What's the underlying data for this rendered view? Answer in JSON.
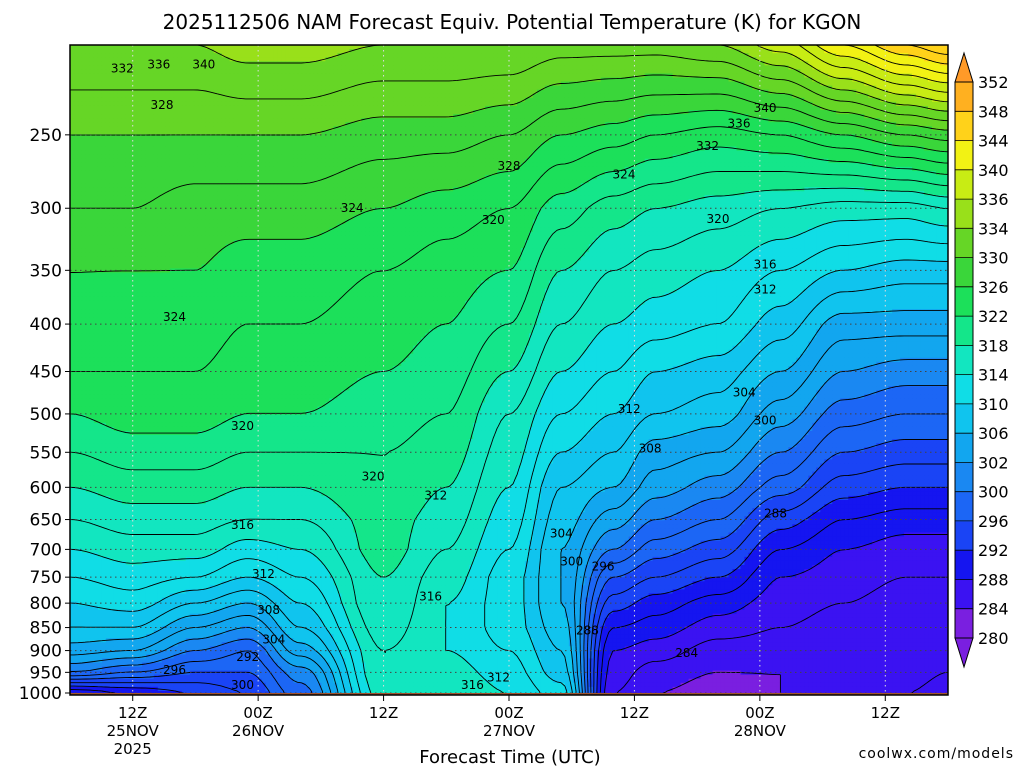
{
  "chart_data": {
    "type": "heatmap",
    "title": "2025112506 NAM Forecast Equiv. Potential Temperature (K) for KGON",
    "xlabel": "Forecast Time (UTC)",
    "ylabel": "",
    "y_scale": "log-pressure",
    "y_inverted": true,
    "y_ticks": [
      250,
      300,
      350,
      400,
      450,
      500,
      550,
      600,
      650,
      700,
      750,
      800,
      850,
      900,
      950,
      1000
    ],
    "ylim": [
      1005,
      200
    ],
    "x_ticks": [
      {
        "hour": 6,
        "label1": "12Z",
        "label2": "25NOV",
        "label3": "2025"
      },
      {
        "hour": 18,
        "label1": "00Z",
        "label2": "26NOV",
        "label3": ""
      },
      {
        "hour": 30,
        "label1": "12Z",
        "label2": "",
        "label3": ""
      },
      {
        "hour": 42,
        "label1": "00Z",
        "label2": "27NOV",
        "label3": ""
      },
      {
        "hour": 54,
        "label1": "12Z",
        "label2": "",
        "label3": ""
      },
      {
        "hour": 66,
        "label1": "00Z",
        "label2": "28NOV",
        "label3": ""
      },
      {
        "hour": 78,
        "label1": "12Z",
        "label2": "",
        "label3": ""
      }
    ],
    "xlim": [
      0,
      84
    ],
    "grid": true,
    "colorbar": {
      "placement": "right",
      "unit": "K",
      "levels": [
        280,
        284,
        288,
        292,
        296,
        300,
        302,
        306,
        310,
        314,
        318,
        322,
        326,
        330,
        334,
        336,
        340,
        344,
        348,
        352
      ],
      "labels": [
        "280",
        "284",
        "288",
        "292",
        "296",
        "300",
        "302",
        "306",
        "310",
        "314",
        "318",
        "322",
        "326",
        "330",
        "334",
        "336",
        "340",
        "344",
        "348",
        "352"
      ]
    },
    "contour_interval": 2,
    "field": {
      "comment_free_profile_times": [
        0,
        6,
        12,
        17,
        22,
        30,
        36,
        42,
        47,
        52,
        56,
        62,
        68,
        74,
        80,
        84
      ],
      "pressures": [
        1000,
        950,
        900,
        850,
        800,
        750,
        700,
        650,
        600,
        550,
        500,
        450,
        400,
        350,
        300,
        250,
        200
      ],
      "profiles": [
        [
          288,
          300,
          305,
          308,
          310,
          312,
          314,
          316,
          318,
          320,
          322,
          324,
          326,
          326,
          328,
          330,
          334
        ],
        [
          290,
          298,
          304,
          308,
          311,
          313,
          315,
          317,
          319,
          321,
          323,
          324,
          325,
          326,
          328,
          330,
          334
        ],
        [
          292,
          296,
          300,
          304,
          308,
          312,
          315,
          317,
          319,
          321,
          323,
          324,
          325,
          326,
          327,
          330,
          334
        ],
        [
          294,
          296,
          298,
          302,
          306,
          310,
          313,
          316,
          318,
          320,
          322,
          323,
          324,
          325,
          327,
          330,
          335
        ],
        [
          299,
          301,
          305,
          308,
          310,
          312,
          314,
          316,
          318,
          320,
          322,
          323,
          324,
          325,
          327,
          330,
          335
        ],
        [
          315,
          316,
          316,
          317,
          318,
          318,
          319,
          319,
          320,
          320,
          321,
          322,
          323,
          324,
          326,
          329,
          334
        ],
        [
          316,
          315,
          314,
          314,
          314,
          315,
          316,
          317,
          318,
          319,
          320,
          321,
          322,
          323,
          325,
          329,
          334
        ],
        [
          314,
          313,
          312,
          311,
          311,
          311,
          312,
          313,
          314,
          315,
          316,
          318,
          320,
          322,
          324,
          328,
          334
        ],
        [
          311,
          309,
          308,
          307,
          306,
          306,
          306,
          307,
          308,
          310,
          312,
          314,
          316,
          318,
          321,
          326,
          333
        ],
        [
          286,
          287,
          288,
          290,
          293,
          296,
          300,
          303,
          306,
          308,
          310,
          312,
          314,
          316,
          319,
          325,
          333
        ],
        [
          284,
          285,
          287,
          289,
          291,
          294,
          297,
          300,
          303,
          305,
          308,
          310,
          313,
          315,
          318,
          324,
          333
        ],
        [
          283,
          284,
          285,
          287,
          289,
          292,
          295,
          298,
          301,
          304,
          307,
          309,
          312,
          314,
          317,
          323,
          334
        ],
        [
          284,
          284,
          285,
          286,
          287,
          288,
          290,
          293,
          297,
          300,
          303,
          306,
          309,
          312,
          316,
          324,
          337
        ],
        [
          285,
          285,
          285,
          285,
          286,
          287,
          288,
          290,
          293,
          296,
          299,
          302,
          305,
          310,
          315,
          326,
          342
        ],
        [
          286,
          285,
          285,
          285,
          285,
          286,
          287,
          289,
          292,
          295,
          298,
          301,
          305,
          309,
          315,
          328,
          346
        ],
        [
          287,
          286,
          285,
          285,
          285,
          286,
          287,
          289,
          292,
          295,
          298,
          301,
          305,
          309,
          316,
          329,
          348
        ]
      ]
    },
    "contour_labels": [
      {
        "text": "332",
        "hour": 5.0,
        "pressure": 212
      },
      {
        "text": "336",
        "hour": 8.5,
        "pressure": 210
      },
      {
        "text": "340",
        "hour": 12.8,
        "pressure": 210
      },
      {
        "text": "328",
        "hour": 8.8,
        "pressure": 232
      },
      {
        "text": "328",
        "hour": 42.0,
        "pressure": 270
      },
      {
        "text": "324",
        "hour": 27.0,
        "pressure": 300
      },
      {
        "text": "320",
        "hour": 40.5,
        "pressure": 309
      },
      {
        "text": "324",
        "hour": 10.0,
        "pressure": 393
      },
      {
        "text": "324",
        "hour": 53.0,
        "pressure": 276
      },
      {
        "text": "332",
        "hour": 61.0,
        "pressure": 257
      },
      {
        "text": "336",
        "hour": 64.0,
        "pressure": 243
      },
      {
        "text": "340",
        "hour": 66.5,
        "pressure": 234
      },
      {
        "text": "320",
        "hour": 62.0,
        "pressure": 308
      },
      {
        "text": "316",
        "hour": 66.5,
        "pressure": 345
      },
      {
        "text": "312",
        "hour": 66.5,
        "pressure": 367
      },
      {
        "text": "304",
        "hour": 64.5,
        "pressure": 474
      },
      {
        "text": "300",
        "hour": 66.5,
        "pressure": 508
      },
      {
        "text": "312",
        "hour": 53.5,
        "pressure": 494
      },
      {
        "text": "308",
        "hour": 55.5,
        "pressure": 545
      },
      {
        "text": "288",
        "hour": 67.5,
        "pressure": 640
      },
      {
        "text": "320",
        "hour": 16.5,
        "pressure": 515
      },
      {
        "text": "320",
        "hour": 29.0,
        "pressure": 584
      },
      {
        "text": "312",
        "hour": 35.0,
        "pressure": 612
      },
      {
        "text": "316",
        "hour": 16.5,
        "pressure": 659
      },
      {
        "text": "312",
        "hour": 18.5,
        "pressure": 744
      },
      {
        "text": "308",
        "hour": 19.0,
        "pressure": 814
      },
      {
        "text": "304",
        "hour": 19.5,
        "pressure": 876
      },
      {
        "text": "292",
        "hour": 17.0,
        "pressure": 914
      },
      {
        "text": "296",
        "hour": 10.0,
        "pressure": 944
      },
      {
        "text": "300",
        "hour": 16.5,
        "pressure": 980
      },
      {
        "text": "316",
        "hour": 34.5,
        "pressure": 787
      },
      {
        "text": "316",
        "hour": 38.5,
        "pressure": 980
      },
      {
        "text": "312",
        "hour": 41.0,
        "pressure": 962
      },
      {
        "text": "304",
        "hour": 47.0,
        "pressure": 673
      },
      {
        "text": "300",
        "hour": 48.0,
        "pressure": 721
      },
      {
        "text": "296",
        "hour": 51.0,
        "pressure": 730
      },
      {
        "text": "288",
        "hour": 49.5,
        "pressure": 856
      },
      {
        "text": "284",
        "hour": 59.0,
        "pressure": 906
      }
    ],
    "terrain": {
      "color": "#a0522d",
      "from_pressure": 1000
    }
  },
  "credit": "coolwx.com/models",
  "colors": {
    "frame": "#000000",
    "grid": "#444444",
    "credit": "#cc2222",
    "terrain": "#a0522d"
  }
}
